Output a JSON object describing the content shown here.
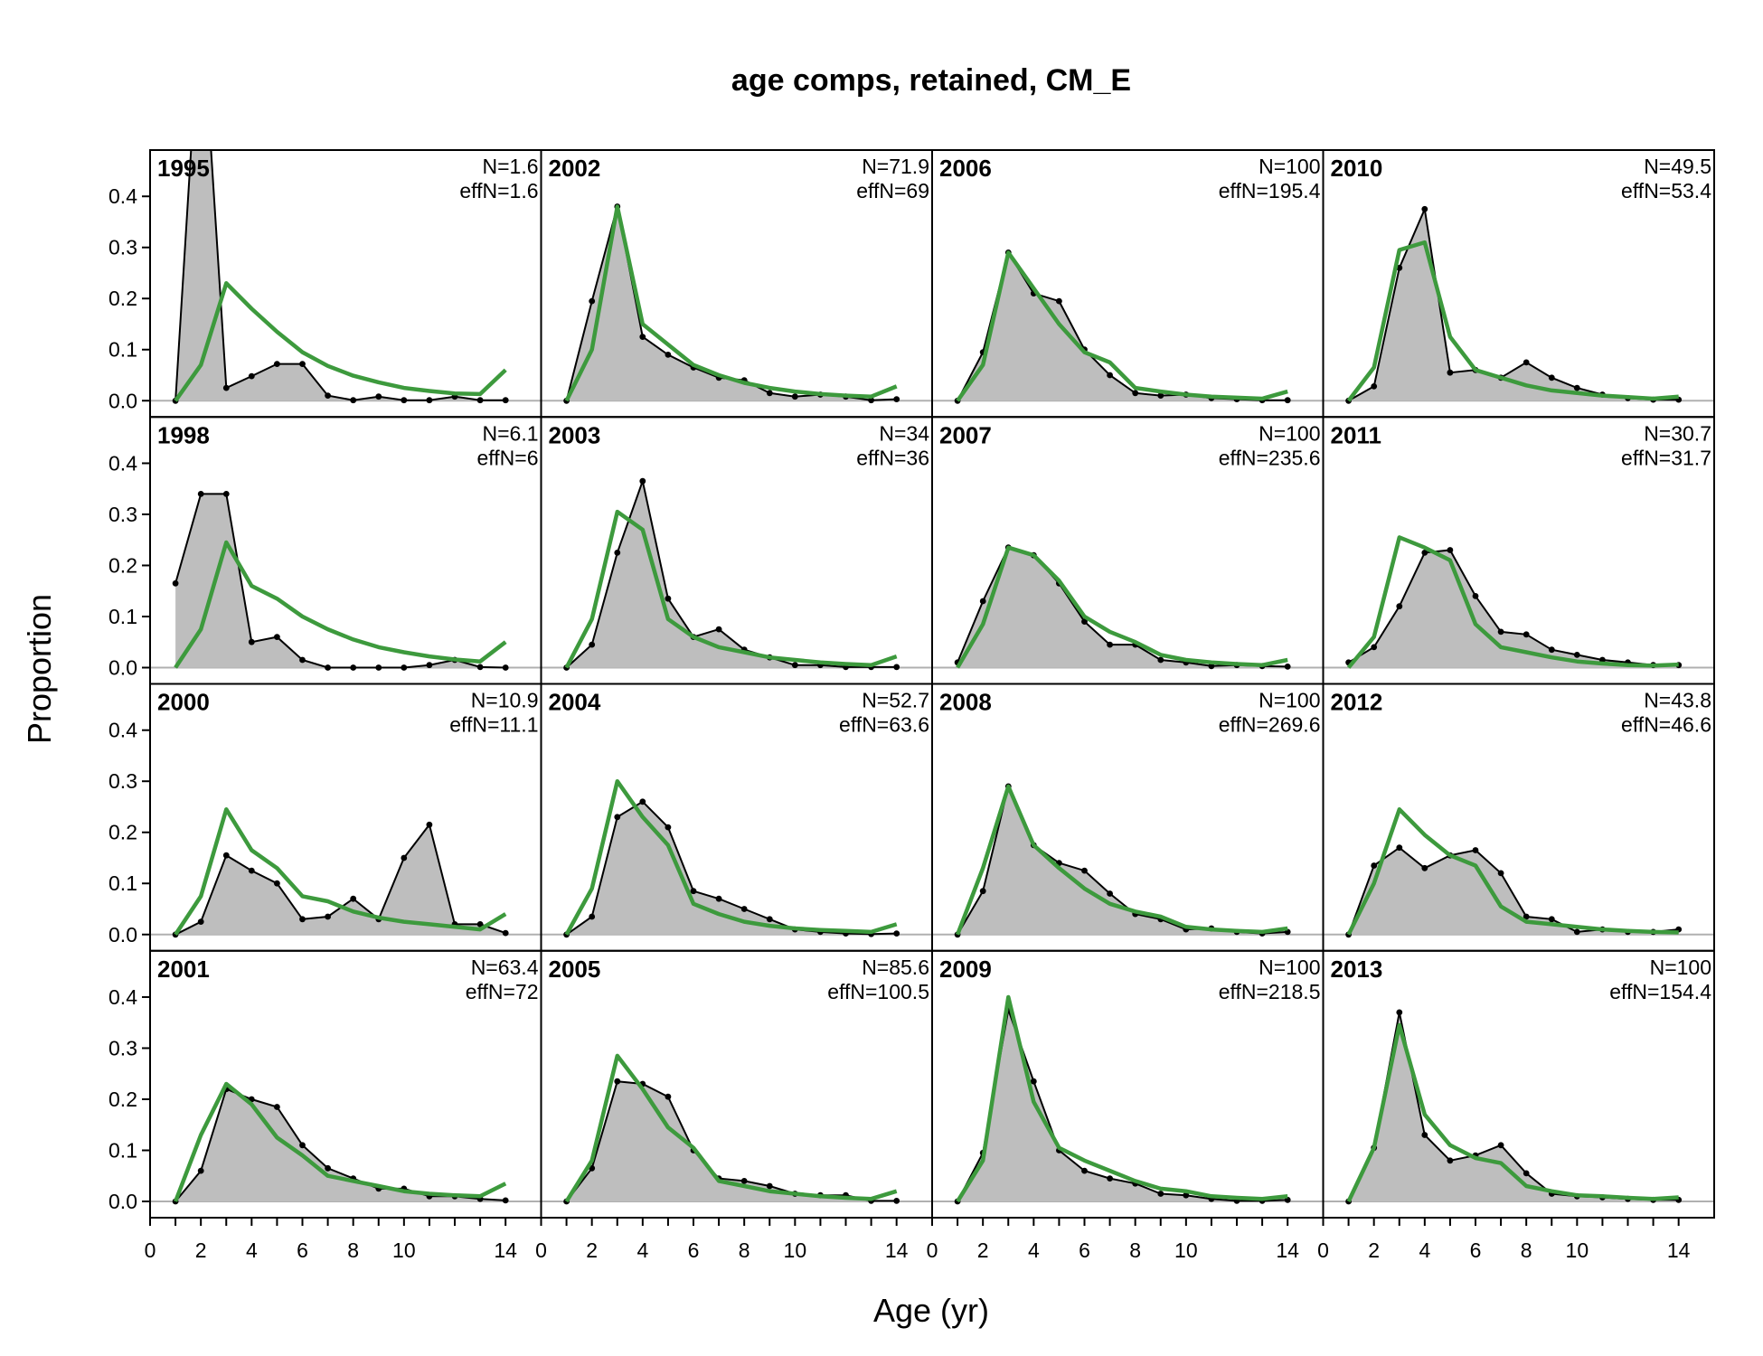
{
  "chart_data": {
    "type": "area",
    "title": "age comps, retained, CM_E",
    "xlabel": "Age (yr)",
    "ylabel": "Proportion",
    "xlim": [
      0,
      15.4
    ],
    "ylim": [
      0,
      0.48
    ],
    "x_ticks": [
      0,
      2,
      4,
      6,
      8,
      10,
      14
    ],
    "y_ticks": [
      "0.0",
      "0.1",
      "0.2",
      "0.3",
      "0.4"
    ],
    "ages": [
      1,
      2,
      3,
      4,
      5,
      6,
      7,
      8,
      9,
      10,
      11,
      12,
      13,
      14
    ],
    "styles": {
      "obs_fill": "#bebebe",
      "obs_line": "#000000",
      "exp_line": "#3d9a3d",
      "zero_line": "#b0b0b0"
    },
    "panels": [
      {
        "year": "1995",
        "N": "N=1.6",
        "effN": "effN=1.6",
        "obs": [
          0,
          0.8,
          0.025,
          0.048,
          0.072,
          0.072,
          0.01,
          0.001,
          0.008,
          0.001,
          0.001,
          0.008,
          0.001,
          0.001
        ],
        "exp": [
          0,
          0.07,
          0.23,
          0.18,
          0.135,
          0.095,
          0.068,
          0.049,
          0.036,
          0.025,
          0.019,
          0.014,
          0.013,
          0.06
        ]
      },
      {
        "year": "2002",
        "N": "N=71.9",
        "effN": "effN=69",
        "obs": [
          0,
          0.195,
          0.38,
          0.125,
          0.09,
          0.065,
          0.045,
          0.04,
          0.015,
          0.008,
          0.012,
          0.008,
          0.001,
          0.003
        ],
        "exp": [
          0,
          0.1,
          0.38,
          0.15,
          0.11,
          0.07,
          0.05,
          0.035,
          0.025,
          0.018,
          0.013,
          0.01,
          0.008,
          0.028
        ]
      },
      {
        "year": "2006",
        "N": "N=100",
        "effN": "effN=195.4",
        "obs": [
          0,
          0.095,
          0.29,
          0.21,
          0.195,
          0.1,
          0.05,
          0.015,
          0.01,
          0.012,
          0.005,
          0.003,
          0.001,
          0.001
        ],
        "exp": [
          0,
          0.07,
          0.29,
          0.22,
          0.15,
          0.095,
          0.075,
          0.025,
          0.018,
          0.012,
          0.008,
          0.006,
          0.004,
          0.018
        ]
      },
      {
        "year": "2010",
        "N": "N=49.5",
        "effN": "effN=53.4",
        "obs": [
          0,
          0.028,
          0.26,
          0.375,
          0.055,
          0.06,
          0.045,
          0.075,
          0.045,
          0.025,
          0.012,
          0.005,
          0.002,
          0.002
        ],
        "exp": [
          0,
          0.065,
          0.295,
          0.31,
          0.125,
          0.06,
          0.045,
          0.03,
          0.02,
          0.015,
          0.01,
          0.007,
          0.004,
          0.008
        ]
      },
      {
        "year": "1998",
        "N": "N=6.1",
        "effN": "effN=6",
        "obs": [
          0.165,
          0.34,
          0.34,
          0.05,
          0.06,
          0.015,
          0,
          0,
          0,
          0,
          0.005,
          0.015,
          0.001,
          0
        ],
        "exp": [
          0,
          0.075,
          0.245,
          0.16,
          0.135,
          0.1,
          0.075,
          0.055,
          0.04,
          0.03,
          0.022,
          0.016,
          0.012,
          0.05
        ]
      },
      {
        "year": "2003",
        "N": "N=34",
        "effN": "effN=36",
        "obs": [
          0,
          0.045,
          0.225,
          0.365,
          0.135,
          0.06,
          0.075,
          0.035,
          0.02,
          0.005,
          0.005,
          0.001,
          0.001,
          0.001
        ],
        "exp": [
          0,
          0.095,
          0.305,
          0.27,
          0.095,
          0.06,
          0.04,
          0.03,
          0.02,
          0.015,
          0.01,
          0.007,
          0.005,
          0.022
        ]
      },
      {
        "year": "2007",
        "N": "N=100",
        "effN": "effN=235.6",
        "obs": [
          0.01,
          0.13,
          0.235,
          0.22,
          0.165,
          0.09,
          0.045,
          0.045,
          0.015,
          0.01,
          0.003,
          0.005,
          0.003,
          0.002
        ],
        "exp": [
          0,
          0.085,
          0.235,
          0.22,
          0.17,
          0.1,
          0.07,
          0.05,
          0.025,
          0.015,
          0.01,
          0.007,
          0.005,
          0.015
        ]
      },
      {
        "year": "2011",
        "N": "N=30.7",
        "effN": "effN=31.7",
        "obs": [
          0.01,
          0.04,
          0.12,
          0.225,
          0.23,
          0.14,
          0.07,
          0.065,
          0.035,
          0.025,
          0.015,
          0.01,
          0.005,
          0.005
        ],
        "exp": [
          0,
          0.06,
          0.255,
          0.235,
          0.21,
          0.085,
          0.04,
          0.03,
          0.02,
          0.012,
          0.008,
          0.005,
          0.004,
          0.006
        ]
      },
      {
        "year": "2000",
        "N": "N=10.9",
        "effN": "effN=11.1",
        "obs": [
          0,
          0.025,
          0.155,
          0.125,
          0.1,
          0.03,
          0.035,
          0.07,
          0.03,
          0.15,
          0.215,
          0.02,
          0.02,
          0.003
        ],
        "exp": [
          0,
          0.075,
          0.245,
          0.165,
          0.13,
          0.075,
          0.065,
          0.045,
          0.033,
          0.025,
          0.02,
          0.015,
          0.01,
          0.04
        ]
      },
      {
        "year": "2004",
        "N": "N=52.7",
        "effN": "effN=63.6",
        "obs": [
          0,
          0.035,
          0.23,
          0.26,
          0.21,
          0.085,
          0.07,
          0.05,
          0.03,
          0.01,
          0.005,
          0.002,
          0.001,
          0.002
        ],
        "exp": [
          0,
          0.09,
          0.3,
          0.23,
          0.175,
          0.06,
          0.04,
          0.025,
          0.017,
          0.012,
          0.009,
          0.007,
          0.005,
          0.02
        ]
      },
      {
        "year": "2008",
        "N": "N=100",
        "effN": "effN=269.6",
        "obs": [
          0,
          0.085,
          0.29,
          0.175,
          0.14,
          0.125,
          0.08,
          0.04,
          0.03,
          0.01,
          0.012,
          0.005,
          0.002,
          0.005
        ],
        "exp": [
          0,
          0.13,
          0.29,
          0.175,
          0.13,
          0.09,
          0.06,
          0.045,
          0.035,
          0.015,
          0.01,
          0.007,
          0.005,
          0.012
        ]
      },
      {
        "year": "2012",
        "N": "N=43.8",
        "effN": "effN=46.6",
        "obs": [
          0,
          0.135,
          0.17,
          0.13,
          0.155,
          0.165,
          0.12,
          0.035,
          0.03,
          0.005,
          0.01,
          0.005,
          0.005,
          0.01
        ],
        "exp": [
          0,
          0.1,
          0.245,
          0.195,
          0.155,
          0.135,
          0.055,
          0.025,
          0.02,
          0.015,
          0.01,
          0.007,
          0.005,
          0.004
        ]
      },
      {
        "year": "2001",
        "N": "N=63.4",
        "effN": "effN=72",
        "obs": [
          0,
          0.06,
          0.22,
          0.2,
          0.185,
          0.11,
          0.065,
          0.045,
          0.025,
          0.025,
          0.01,
          0.01,
          0.005,
          0.002
        ],
        "exp": [
          0,
          0.13,
          0.23,
          0.19,
          0.125,
          0.09,
          0.05,
          0.04,
          0.03,
          0.02,
          0.015,
          0.012,
          0.01,
          0.035
        ]
      },
      {
        "year": "2005",
        "N": "N=85.6",
        "effN": "effN=100.5",
        "obs": [
          0,
          0.065,
          0.235,
          0.23,
          0.205,
          0.1,
          0.045,
          0.04,
          0.03,
          0.015,
          0.012,
          0.012,
          0.001,
          0.001
        ],
        "exp": [
          0,
          0.08,
          0.285,
          0.22,
          0.145,
          0.105,
          0.04,
          0.03,
          0.02,
          0.015,
          0.01,
          0.007,
          0.005,
          0.02
        ]
      },
      {
        "year": "2009",
        "N": "N=100",
        "effN": "effN=218.5",
        "obs": [
          0,
          0.095,
          0.375,
          0.235,
          0.1,
          0.06,
          0.045,
          0.035,
          0.015,
          0.012,
          0.005,
          0.001,
          0.001,
          0.003
        ],
        "exp": [
          0,
          0.08,
          0.4,
          0.195,
          0.105,
          0.08,
          0.06,
          0.04,
          0.025,
          0.02,
          0.01,
          0.007,
          0.005,
          0.01
        ]
      },
      {
        "year": "2013",
        "N": "N=100",
        "effN": "effN=154.4",
        "obs": [
          0,
          0.105,
          0.37,
          0.13,
          0.08,
          0.09,
          0.11,
          0.055,
          0.015,
          0.01,
          0.008,
          0.005,
          0.003,
          0.003
        ],
        "exp": [
          0,
          0.105,
          0.345,
          0.17,
          0.11,
          0.085,
          0.075,
          0.03,
          0.02,
          0.012,
          0.01,
          0.007,
          0.005,
          0.008
        ]
      }
    ]
  }
}
